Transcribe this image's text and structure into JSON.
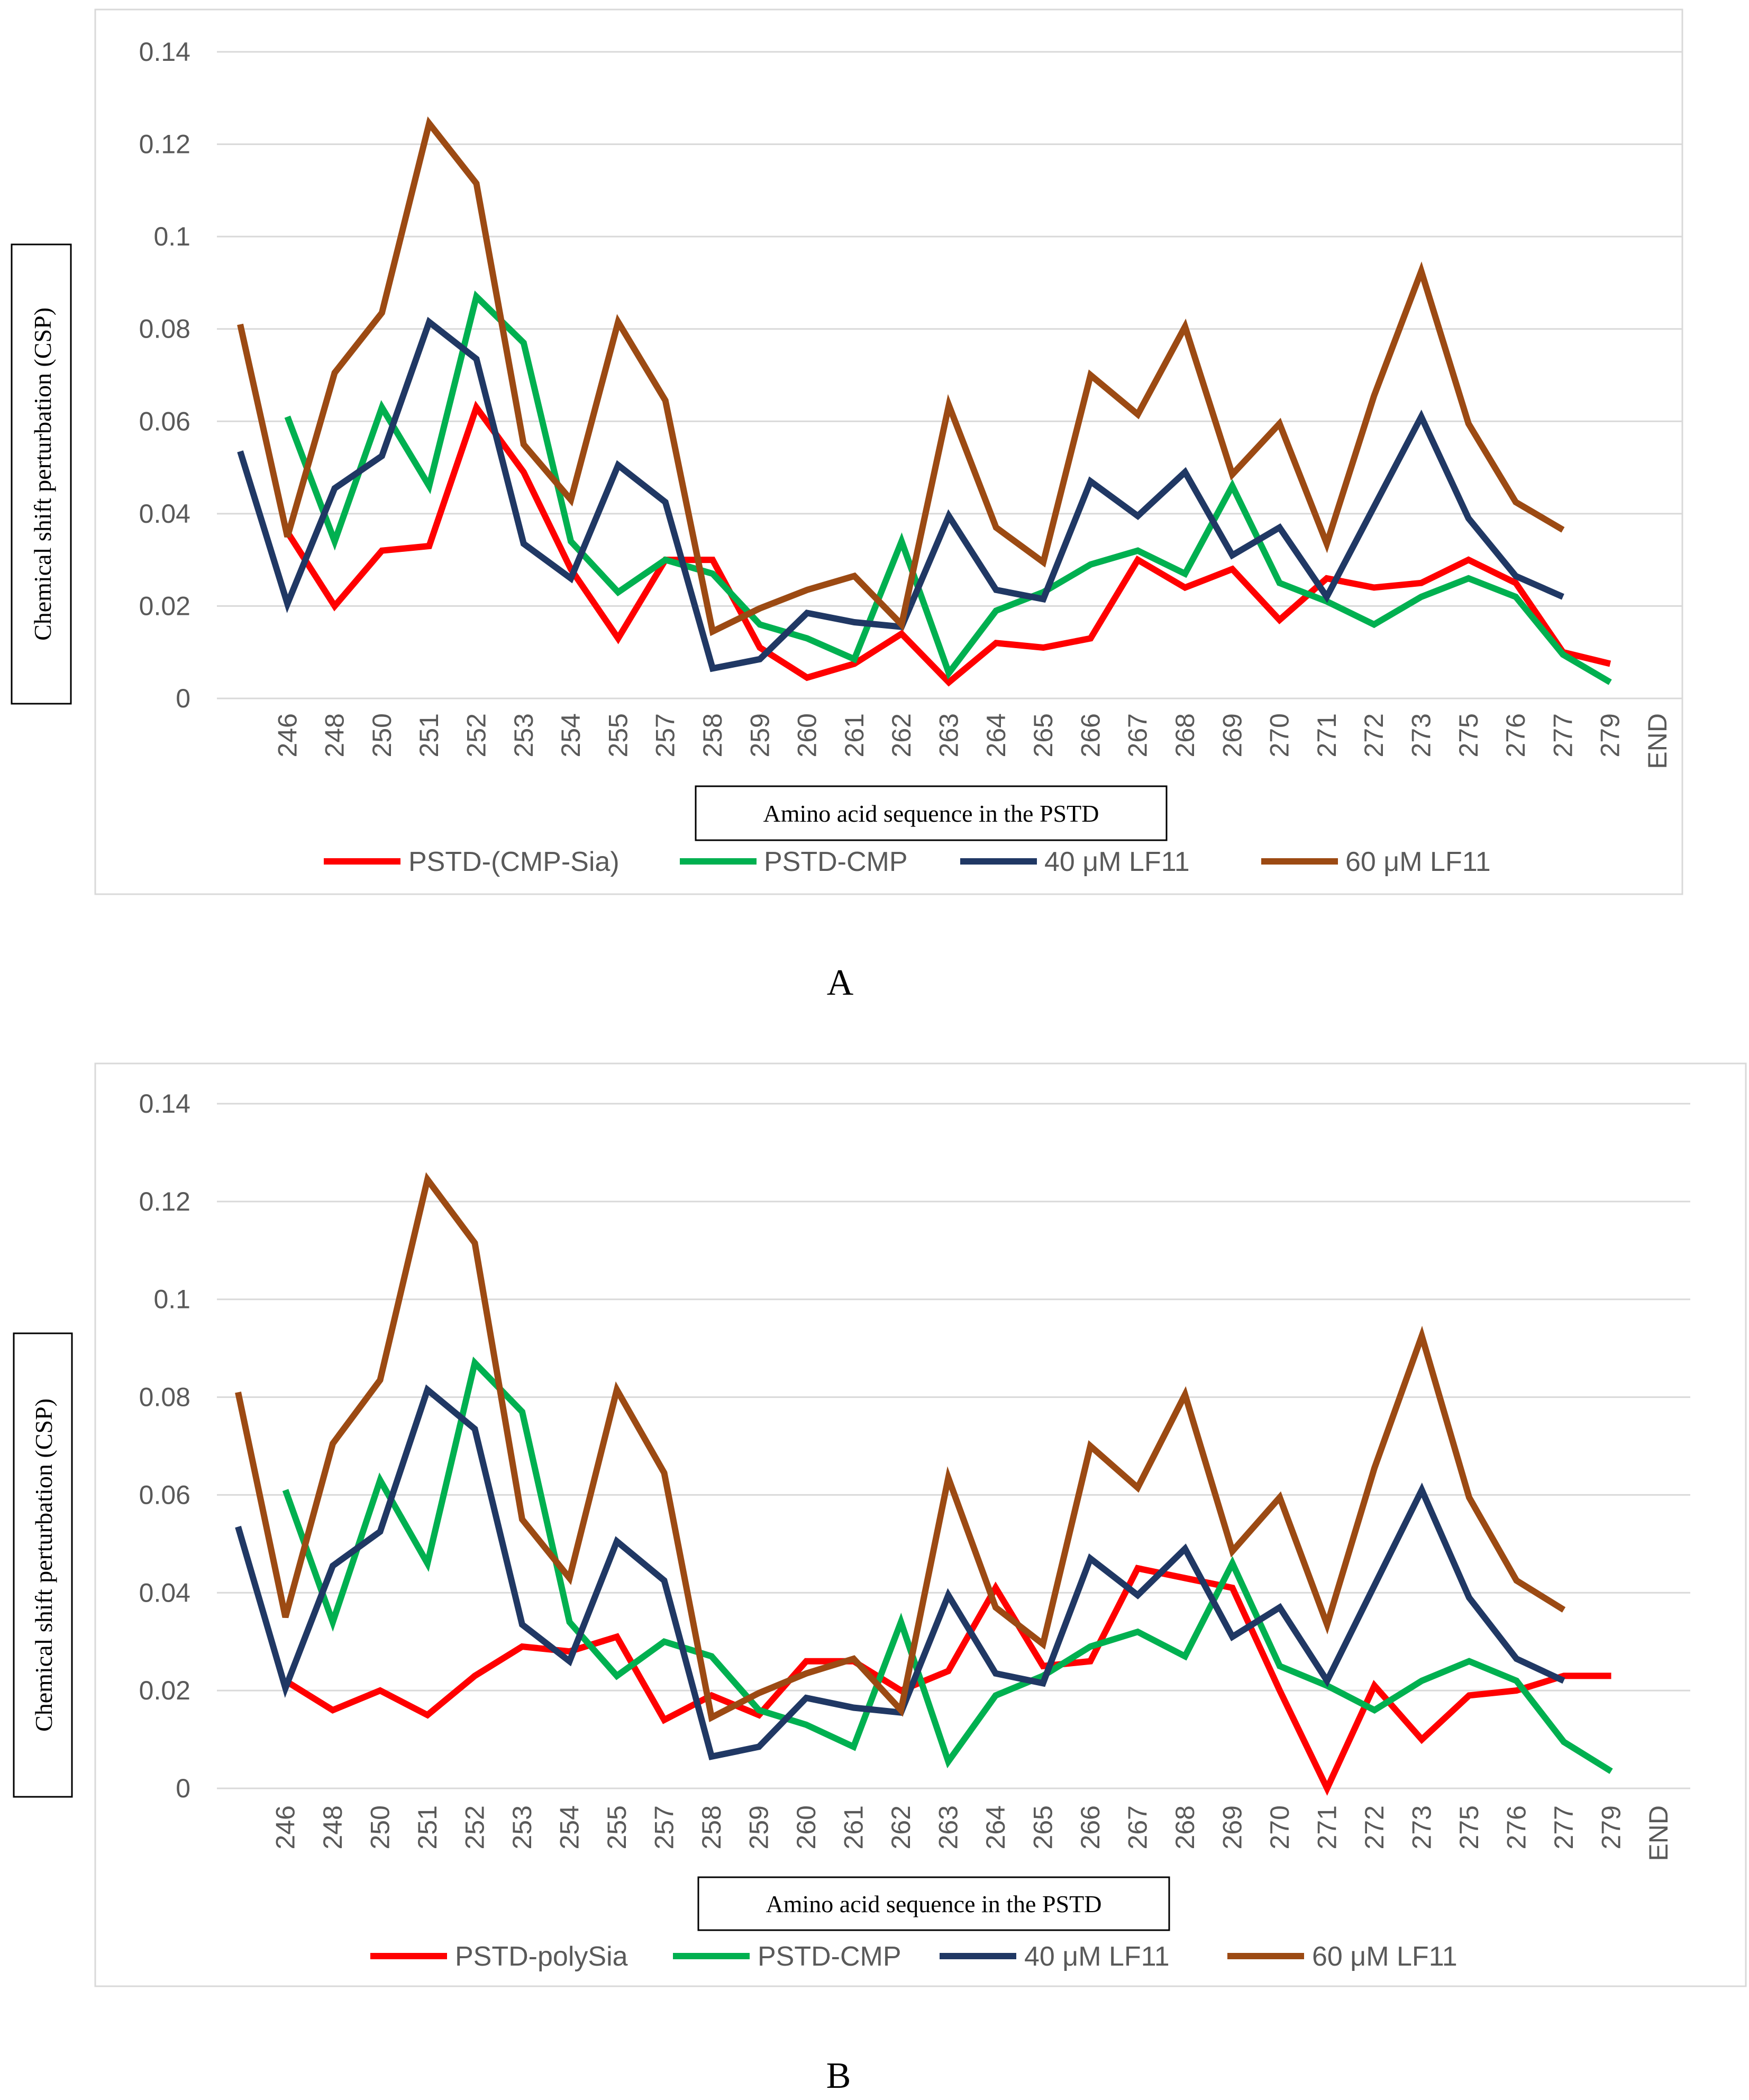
{
  "chart_data": [
    {
      "type": "line",
      "panel": "A",
      "panel_label": "A",
      "xlabel": "Amino acid sequence in the PSTD",
      "ylabel": "Chemical shift perturbation (CSP)",
      "ylim": [
        0,
        0.14
      ],
      "yticks": [
        "0",
        "0.02",
        "0.04",
        "0.06",
        "0.08",
        "0.1",
        "0.12",
        "0.14"
      ],
      "grid": true,
      "legend_position": "bottom",
      "categories": [
        "",
        "246",
        "248",
        "250",
        "251",
        "252",
        "253",
        "254",
        "255",
        "257",
        "258",
        "259",
        "260",
        "261",
        "262",
        "263",
        "264",
        "265",
        "266",
        "267",
        "268",
        "269",
        "270",
        "271",
        "272",
        "273",
        "275",
        "276",
        "277",
        "279",
        "END"
      ],
      "series": [
        {
          "name": "PSTD-(CMP-Sia)",
          "color": "#ff0000",
          "values": [
            null,
            0.036,
            0.02,
            0.032,
            0.033,
            0.063,
            0.049,
            0.028,
            0.013,
            0.03,
            0.03,
            0.011,
            0.0045,
            0.0075,
            0.014,
            0.0035,
            0.012,
            0.011,
            0.013,
            0.03,
            0.024,
            0.028,
            0.017,
            0.026,
            0.024,
            0.025,
            0.03,
            0.025,
            0.01,
            0.0075,
            null
          ]
        },
        {
          "name": "PSTD-CMP",
          "color": "#00b050",
          "values": [
            null,
            0.061,
            0.034,
            0.063,
            0.046,
            0.087,
            0.077,
            0.034,
            0.023,
            0.03,
            0.027,
            0.016,
            0.013,
            0.0085,
            0.034,
            0.0055,
            0.019,
            0.023,
            0.029,
            0.032,
            0.027,
            0.046,
            0.025,
            0.021,
            0.016,
            0.022,
            0.026,
            0.022,
            0.0095,
            0.0035,
            null
          ]
        },
        {
          "name": "40 μM LF11",
          "color": "#203864",
          "values": [
            0.0535,
            0.0205,
            0.0455,
            0.0525,
            0.0815,
            0.0735,
            0.0335,
            0.026,
            0.0505,
            0.0425,
            0.0065,
            0.0085,
            0.0185,
            0.0165,
            0.0155,
            0.0395,
            0.0235,
            0.0215,
            0.047,
            0.0395,
            0.049,
            0.031,
            0.037,
            0.022,
            0.0415,
            0.061,
            0.039,
            0.0265,
            0.022,
            null,
            null
          ]
        },
        {
          "name": "60 μM LF11",
          "color": "#9c4a13",
          "values": [
            0.081,
            0.035,
            0.0705,
            0.0835,
            0.1245,
            0.1115,
            0.055,
            0.043,
            0.0815,
            0.0645,
            0.0145,
            0.0195,
            0.0235,
            0.0265,
            0.016,
            0.0635,
            0.037,
            0.0295,
            0.07,
            0.0615,
            0.0805,
            0.0485,
            0.0595,
            0.0335,
            0.0655,
            0.0925,
            0.0595,
            0.0425,
            0.0365,
            null,
            null
          ]
        }
      ]
    },
    {
      "type": "line",
      "panel": "B",
      "panel_label": "B",
      "xlabel": "Amino acid sequence in the PSTD",
      "ylabel": "Chemical shift perturbation (CSP)",
      "ylim": [
        0,
        0.14
      ],
      "yticks": [
        "0",
        "0.02",
        "0.04",
        "0.06",
        "0.08",
        "0.1",
        "0.12",
        "0.14"
      ],
      "grid": true,
      "legend_position": "bottom",
      "categories": [
        "",
        "246",
        "248",
        "250",
        "251",
        "252",
        "253",
        "254",
        "255",
        "257",
        "258",
        "259",
        "260",
        "261",
        "262",
        "263",
        "264",
        "265",
        "266",
        "267",
        "268",
        "269",
        "270",
        "271",
        "272",
        "273",
        "275",
        "276",
        "277",
        "279",
        "END"
      ],
      "series": [
        {
          "name": "PSTD-polySia",
          "color": "#ff0000",
          "values": [
            null,
            0.022,
            0.016,
            0.02,
            0.015,
            0.023,
            0.029,
            0.028,
            0.031,
            0.014,
            0.019,
            0.015,
            0.026,
            0.026,
            0.02,
            0.024,
            0.041,
            0.025,
            0.026,
            0.045,
            0.043,
            0.041,
            0.02,
            0.0,
            0.021,
            0.01,
            0.019,
            0.02,
            0.023,
            0.023,
            null
          ]
        },
        {
          "name": "PSTD-CMP",
          "color": "#00b050",
          "values": [
            null,
            0.061,
            0.034,
            0.063,
            0.046,
            0.087,
            0.077,
            0.034,
            0.023,
            0.03,
            0.027,
            0.016,
            0.013,
            0.0085,
            0.034,
            0.0055,
            0.019,
            0.023,
            0.029,
            0.032,
            0.027,
            0.046,
            0.025,
            0.021,
            0.016,
            0.022,
            0.026,
            0.022,
            0.0095,
            0.0035,
            null
          ]
        },
        {
          "name": "40 μM LF11",
          "color": "#203864",
          "values": [
            0.0535,
            0.0205,
            0.0455,
            0.0525,
            0.0815,
            0.0735,
            0.0335,
            0.026,
            0.0505,
            0.0425,
            0.0065,
            0.0085,
            0.0185,
            0.0165,
            0.0155,
            0.0395,
            0.0235,
            0.0215,
            0.047,
            0.0395,
            0.049,
            0.031,
            0.037,
            0.022,
            0.0415,
            0.061,
            0.039,
            0.0265,
            0.022,
            null,
            null
          ]
        },
        {
          "name": "60 μM LF11",
          "color": "#9c4a13",
          "values": [
            0.081,
            0.035,
            0.0705,
            0.0835,
            0.1245,
            0.1115,
            0.055,
            0.043,
            0.0815,
            0.0645,
            0.0145,
            0.0195,
            0.0235,
            0.0265,
            0.016,
            0.0635,
            0.037,
            0.0295,
            0.07,
            0.0615,
            0.0805,
            0.0485,
            0.0595,
            0.0335,
            0.0655,
            0.0925,
            0.0595,
            0.0425,
            0.0365,
            null,
            null
          ]
        }
      ]
    }
  ]
}
